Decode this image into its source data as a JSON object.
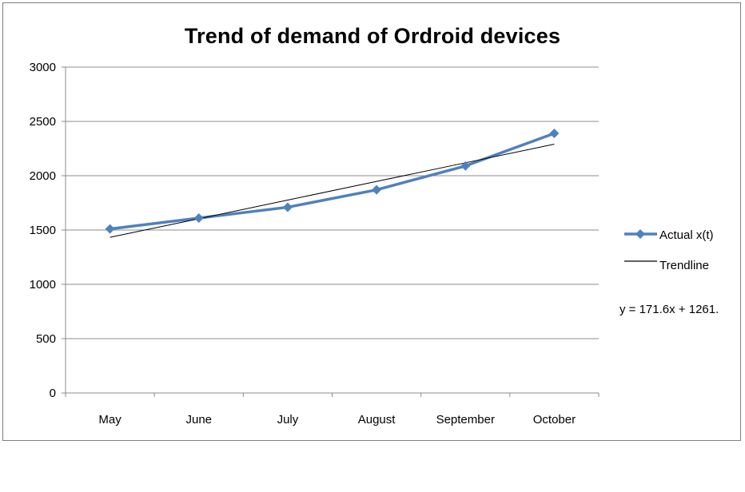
{
  "chart_data": {
    "type": "line",
    "title": "Trend of demand of Ordroid devices",
    "xlabel": "",
    "ylabel": "",
    "categories": [
      "May",
      "June",
      "July",
      "August",
      "September",
      "October"
    ],
    "ylim": [
      0,
      3000
    ],
    "yticks": [
      0,
      500,
      1000,
      1500,
      2000,
      2500,
      3000
    ],
    "grid": true,
    "legend_position": "right",
    "series": [
      {
        "name": "Actual x(t)",
        "values": [
          1510,
          1610,
          1710,
          1870,
          2090,
          2390
        ],
        "color": "#4f81bd",
        "marker": "diamond"
      },
      {
        "name": "Trendline",
        "values": [
          1432.6,
          1604.2,
          1775.8,
          1947.4,
          2119.0,
          2290.6
        ],
        "color": "#000000",
        "marker": "none"
      }
    ],
    "annotation": "y = 171.6x + 1261."
  }
}
